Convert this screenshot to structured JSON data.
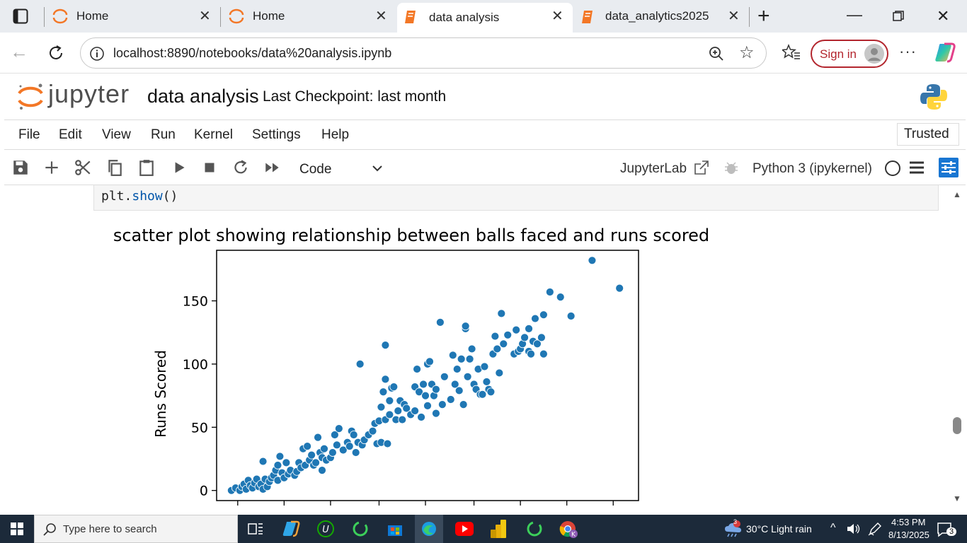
{
  "browser": {
    "tabs": [
      {
        "title": "Home",
        "icon": "jupyter-icon",
        "active": false
      },
      {
        "title": "Home",
        "icon": "jupyter-icon",
        "active": false
      },
      {
        "title": "data analysis",
        "icon": "notebook-icon",
        "active": true
      },
      {
        "title": "data_analytics2025",
        "icon": "notebook-icon",
        "active": false
      }
    ],
    "url": "localhost:8890/notebooks/data%20analysis.ipynb",
    "sign_in_label": "Sign in"
  },
  "jupyter": {
    "logo_text": "jupyter",
    "notebook_title": "data analysis",
    "checkpoint": "Last Checkpoint: last month",
    "trusted_label": "Trusted",
    "menus": [
      "File",
      "Edit",
      "View",
      "Run",
      "Kernel",
      "Settings",
      "Help"
    ],
    "cell_type": "Code",
    "jupyterlab_label": "JupyterLab",
    "kernel_label": "Python 3 (ipykernel)"
  },
  "cell": {
    "code_func": "plt.",
    "code_method": "show",
    "code_paren": "()"
  },
  "chart_data": {
    "type": "scatter",
    "title": "scatter plot showing relationship between balls faced  and runs scored",
    "ylabel": "Runs Scored",
    "xlabel": "",
    "ylim": [
      -8,
      190
    ],
    "yticks": [
      0,
      50,
      100,
      150
    ],
    "xlim": [
      0,
      1
    ],
    "color": "#1f77b4",
    "points": [
      [
        0.035,
        0
      ],
      [
        0.045,
        2
      ],
      [
        0.055,
        0
      ],
      [
        0.06,
        3
      ],
      [
        0.065,
        5
      ],
      [
        0.07,
        1
      ],
      [
        0.075,
        8
      ],
      [
        0.08,
        4
      ],
      [
        0.085,
        2
      ],
      [
        0.09,
        6
      ],
      [
        0.095,
        9
      ],
      [
        0.1,
        3
      ],
      [
        0.105,
        5
      ],
      [
        0.11,
        1
      ],
      [
        0.11,
        23
      ],
      [
        0.115,
        9
      ],
      [
        0.12,
        3
      ],
      [
        0.125,
        7
      ],
      [
        0.13,
        10
      ],
      [
        0.135,
        12
      ],
      [
        0.14,
        16
      ],
      [
        0.145,
        8
      ],
      [
        0.145,
        20
      ],
      [
        0.15,
        27
      ],
      [
        0.155,
        14
      ],
      [
        0.16,
        10
      ],
      [
        0.165,
        22
      ],
      [
        0.17,
        13
      ],
      [
        0.175,
        16
      ],
      [
        0.185,
        12
      ],
      [
        0.19,
        15
      ],
      [
        0.195,
        22
      ],
      [
        0.2,
        18
      ],
      [
        0.205,
        33
      ],
      [
        0.21,
        20
      ],
      [
        0.215,
        35
      ],
      [
        0.22,
        24
      ],
      [
        0.225,
        28
      ],
      [
        0.23,
        20
      ],
      [
        0.235,
        22
      ],
      [
        0.24,
        42
      ],
      [
        0.245,
        30
      ],
      [
        0.25,
        16
      ],
      [
        0.25,
        26
      ],
      [
        0.255,
        33
      ],
      [
        0.26,
        24
      ],
      [
        0.27,
        26
      ],
      [
        0.275,
        30
      ],
      [
        0.28,
        44
      ],
      [
        0.285,
        36
      ],
      [
        0.29,
        49
      ],
      [
        0.3,
        32
      ],
      [
        0.31,
        38
      ],
      [
        0.315,
        35
      ],
      [
        0.32,
        47
      ],
      [
        0.325,
        44
      ],
      [
        0.33,
        30
      ],
      [
        0.335,
        38
      ],
      [
        0.34,
        100
      ],
      [
        0.345,
        36
      ],
      [
        0.35,
        40
      ],
      [
        0.36,
        44
      ],
      [
        0.37,
        47
      ],
      [
        0.375,
        53
      ],
      [
        0.38,
        37
      ],
      [
        0.385,
        55
      ],
      [
        0.39,
        66
      ],
      [
        0.39,
        38
      ],
      [
        0.395,
        78
      ],
      [
        0.4,
        56
      ],
      [
        0.4,
        88
      ],
      [
        0.4,
        115
      ],
      [
        0.405,
        37
      ],
      [
        0.41,
        60
      ],
      [
        0.41,
        71
      ],
      [
        0.415,
        81
      ],
      [
        0.42,
        82
      ],
      [
        0.425,
        56
      ],
      [
        0.43,
        63
      ],
      [
        0.435,
        71
      ],
      [
        0.44,
        56
      ],
      [
        0.445,
        68
      ],
      [
        0.45,
        65
      ],
      [
        0.46,
        60
      ],
      [
        0.47,
        63
      ],
      [
        0.47,
        82
      ],
      [
        0.475,
        96
      ],
      [
        0.48,
        78
      ],
      [
        0.485,
        58
      ],
      [
        0.49,
        84
      ],
      [
        0.495,
        75
      ],
      [
        0.5,
        67
      ],
      [
        0.5,
        100
      ],
      [
        0.505,
        102
      ],
      [
        0.51,
        84
      ],
      [
        0.515,
        75
      ],
      [
        0.52,
        61
      ],
      [
        0.52,
        80
      ],
      [
        0.53,
        133
      ],
      [
        0.535,
        68
      ],
      [
        0.54,
        90
      ],
      [
        0.555,
        72
      ],
      [
        0.56,
        107
      ],
      [
        0.565,
        84
      ],
      [
        0.57,
        96
      ],
      [
        0.575,
        79
      ],
      [
        0.58,
        104
      ],
      [
        0.585,
        68
      ],
      [
        0.59,
        128
      ],
      [
        0.59,
        130
      ],
      [
        0.595,
        90
      ],
      [
        0.6,
        104
      ],
      [
        0.605,
        112
      ],
      [
        0.61,
        84
      ],
      [
        0.615,
        80
      ],
      [
        0.62,
        96
      ],
      [
        0.625,
        76
      ],
      [
        0.63,
        76
      ],
      [
        0.635,
        98
      ],
      [
        0.64,
        86
      ],
      [
        0.645,
        80
      ],
      [
        0.65,
        78
      ],
      [
        0.655,
        108
      ],
      [
        0.66,
        122
      ],
      [
        0.665,
        112
      ],
      [
        0.67,
        93
      ],
      [
        0.675,
        140
      ],
      [
        0.68,
        116
      ],
      [
        0.69,
        123
      ],
      [
        0.705,
        108
      ],
      [
        0.71,
        127
      ],
      [
        0.715,
        110
      ],
      [
        0.72,
        112
      ],
      [
        0.725,
        116
      ],
      [
        0.73,
        121
      ],
      [
        0.74,
        110
      ],
      [
        0.74,
        128
      ],
      [
        0.745,
        108
      ],
      [
        0.75,
        118
      ],
      [
        0.755,
        136
      ],
      [
        0.76,
        116
      ],
      [
        0.77,
        121
      ],
      [
        0.775,
        108
      ],
      [
        0.775,
        139
      ],
      [
        0.79,
        157
      ],
      [
        0.815,
        153
      ],
      [
        0.84,
        138
      ],
      [
        0.89,
        182
      ],
      [
        0.955,
        160
      ]
    ]
  },
  "taskbar": {
    "search_placeholder": "Type here to search",
    "weather": "30°C  Light rain",
    "weather_badge": "3",
    "time": "4:53 PM",
    "date": "8/13/2025",
    "notif_count": "3"
  }
}
